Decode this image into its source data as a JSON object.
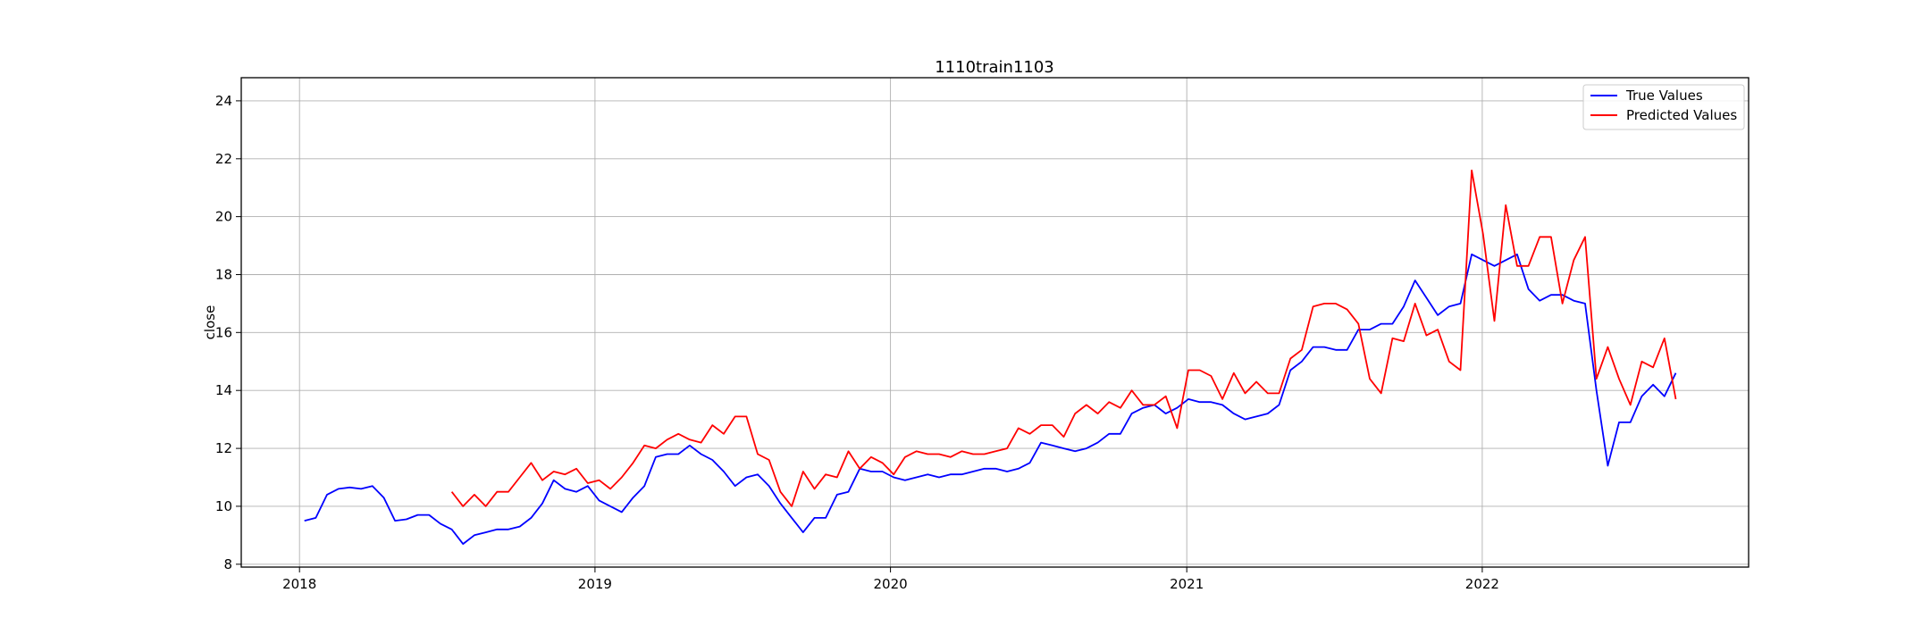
{
  "chart_data": {
    "type": "line",
    "title": "1110train1103",
    "xlabel": "",
    "ylabel": "close",
    "xlim": [
      "2017-10-21",
      "2022-11-26"
    ],
    "ylim": [
      7.9,
      24.8
    ],
    "x_ticks": [
      "2018-01-01",
      "2019-01-01",
      "2020-01-01",
      "2021-01-01",
      "2022-01-01"
    ],
    "x_tick_labels": [
      "2018",
      "2019",
      "2020",
      "2021",
      "2022"
    ],
    "y_ticks": [
      8,
      10,
      12,
      14,
      16,
      18,
      20,
      22,
      24
    ],
    "y_tick_labels": [
      "8",
      "10",
      "12",
      "14",
      "16",
      "18",
      "20",
      "22",
      "24"
    ],
    "grid": true,
    "legend_position": "top-right",
    "series": [
      {
        "name": "True Values",
        "color": "#0000ff",
        "points": [
          [
            "2018-01-07",
            9.5
          ],
          [
            "2018-01-21",
            9.6
          ],
          [
            "2018-02-04",
            10.4
          ],
          [
            "2018-02-18",
            10.6
          ],
          [
            "2018-03-04",
            10.65
          ],
          [
            "2018-03-18",
            10.6
          ],
          [
            "2018-04-01",
            10.7
          ],
          [
            "2018-04-15",
            10.3
          ],
          [
            "2018-04-29",
            9.5
          ],
          [
            "2018-05-13",
            9.55
          ],
          [
            "2018-05-27",
            9.7
          ],
          [
            "2018-06-10",
            9.7
          ],
          [
            "2018-06-24",
            9.4
          ],
          [
            "2018-07-08",
            9.2
          ],
          [
            "2018-07-22",
            8.7
          ],
          [
            "2018-08-05",
            9.0
          ],
          [
            "2018-08-19",
            9.1
          ],
          [
            "2018-09-02",
            9.2
          ],
          [
            "2018-09-16",
            9.2
          ],
          [
            "2018-09-30",
            9.3
          ],
          [
            "2018-10-14",
            9.6
          ],
          [
            "2018-10-28",
            10.1
          ],
          [
            "2018-11-11",
            10.9
          ],
          [
            "2018-11-25",
            10.6
          ],
          [
            "2018-12-09",
            10.5
          ],
          [
            "2018-12-23",
            10.7
          ],
          [
            "2019-01-06",
            10.2
          ],
          [
            "2019-01-20",
            10.0
          ],
          [
            "2019-02-03",
            9.8
          ],
          [
            "2019-02-17",
            10.3
          ],
          [
            "2019-03-03",
            10.7
          ],
          [
            "2019-03-17",
            11.7
          ],
          [
            "2019-03-31",
            11.8
          ],
          [
            "2019-04-14",
            11.8
          ],
          [
            "2019-04-28",
            12.1
          ],
          [
            "2019-05-12",
            11.8
          ],
          [
            "2019-05-26",
            11.6
          ],
          [
            "2019-06-09",
            11.2
          ],
          [
            "2019-06-23",
            10.7
          ],
          [
            "2019-07-07",
            11.0
          ],
          [
            "2019-07-21",
            11.1
          ],
          [
            "2019-08-04",
            10.7
          ],
          [
            "2019-08-18",
            10.1
          ],
          [
            "2019-09-01",
            9.6
          ],
          [
            "2019-09-15",
            9.1
          ],
          [
            "2019-09-29",
            9.6
          ],
          [
            "2019-10-13",
            9.6
          ],
          [
            "2019-10-27",
            10.4
          ],
          [
            "2019-11-10",
            10.5
          ],
          [
            "2019-11-24",
            11.3
          ],
          [
            "2019-12-08",
            11.2
          ],
          [
            "2019-12-22",
            11.2
          ],
          [
            "2020-01-05",
            11.0
          ],
          [
            "2020-01-19",
            10.9
          ],
          [
            "2020-02-02",
            11.0
          ],
          [
            "2020-02-16",
            11.1
          ],
          [
            "2020-03-01",
            11.0
          ],
          [
            "2020-03-15",
            11.1
          ],
          [
            "2020-03-29",
            11.1
          ],
          [
            "2020-04-12",
            11.2
          ],
          [
            "2020-04-26",
            11.3
          ],
          [
            "2020-05-10",
            11.3
          ],
          [
            "2020-05-24",
            11.2
          ],
          [
            "2020-06-07",
            11.3
          ],
          [
            "2020-06-21",
            11.5
          ],
          [
            "2020-07-05",
            12.2
          ],
          [
            "2020-07-19",
            12.1
          ],
          [
            "2020-08-02",
            12.0
          ],
          [
            "2020-08-16",
            11.9
          ],
          [
            "2020-08-30",
            12.0
          ],
          [
            "2020-09-13",
            12.2
          ],
          [
            "2020-09-27",
            12.5
          ],
          [
            "2020-10-11",
            12.5
          ],
          [
            "2020-10-25",
            13.2
          ],
          [
            "2020-11-08",
            13.4
          ],
          [
            "2020-11-22",
            13.5
          ],
          [
            "2020-12-06",
            13.2
          ],
          [
            "2020-12-20",
            13.4
          ],
          [
            "2021-01-03",
            13.7
          ],
          [
            "2021-01-17",
            13.6
          ],
          [
            "2021-01-31",
            13.6
          ],
          [
            "2021-02-14",
            13.5
          ],
          [
            "2021-02-28",
            13.2
          ],
          [
            "2021-03-14",
            13.0
          ],
          [
            "2021-03-28",
            13.1
          ],
          [
            "2021-04-11",
            13.2
          ],
          [
            "2021-04-25",
            13.5
          ],
          [
            "2021-05-09",
            14.7
          ],
          [
            "2021-05-23",
            15.0
          ],
          [
            "2021-06-06",
            15.5
          ],
          [
            "2021-06-20",
            15.5
          ],
          [
            "2021-07-04",
            15.4
          ],
          [
            "2021-07-18",
            15.4
          ],
          [
            "2021-08-01",
            16.1
          ],
          [
            "2021-08-15",
            16.1
          ],
          [
            "2021-08-29",
            16.3
          ],
          [
            "2021-09-12",
            16.3
          ],
          [
            "2021-09-26",
            16.9
          ],
          [
            "2021-10-10",
            17.8
          ],
          [
            "2021-10-24",
            17.2
          ],
          [
            "2021-11-07",
            16.6
          ],
          [
            "2021-11-21",
            16.9
          ],
          [
            "2021-12-05",
            17.0
          ],
          [
            "2021-12-19",
            18.7
          ],
          [
            "2022-01-02",
            18.5
          ],
          [
            "2022-01-16",
            18.3
          ],
          [
            "2022-01-30",
            18.5
          ],
          [
            "2022-02-13",
            18.7
          ],
          [
            "2022-02-27",
            17.5
          ],
          [
            "2022-03-13",
            17.1
          ],
          [
            "2022-03-27",
            17.3
          ],
          [
            "2022-04-10",
            17.3
          ],
          [
            "2022-04-24",
            17.1
          ],
          [
            "2022-05-08",
            17.0
          ],
          [
            "2022-05-22",
            14.0
          ],
          [
            "2022-06-05",
            11.4
          ],
          [
            "2022-06-19",
            12.9
          ],
          [
            "2022-07-03",
            12.9
          ],
          [
            "2022-07-17",
            13.8
          ],
          [
            "2022-07-31",
            14.2
          ],
          [
            "2022-08-14",
            13.8
          ],
          [
            "2022-08-28",
            14.6
          ]
        ]
      },
      {
        "name": "Predicted Values",
        "color": "#ff0000",
        "points": [
          [
            "2018-07-08",
            10.5
          ],
          [
            "2018-07-22",
            10.0
          ],
          [
            "2018-08-05",
            10.4
          ],
          [
            "2018-08-19",
            10.0
          ],
          [
            "2018-09-02",
            10.5
          ],
          [
            "2018-09-16",
            10.5
          ],
          [
            "2018-09-30",
            11.0
          ],
          [
            "2018-10-14",
            11.5
          ],
          [
            "2018-10-28",
            10.9
          ],
          [
            "2018-11-11",
            11.2
          ],
          [
            "2018-11-25",
            11.1
          ],
          [
            "2018-12-09",
            11.3
          ],
          [
            "2018-12-23",
            10.8
          ],
          [
            "2019-01-06",
            10.9
          ],
          [
            "2019-01-20",
            10.6
          ],
          [
            "2019-02-03",
            11.0
          ],
          [
            "2019-02-17",
            11.5
          ],
          [
            "2019-03-03",
            12.1
          ],
          [
            "2019-03-17",
            12.0
          ],
          [
            "2019-03-31",
            12.3
          ],
          [
            "2019-04-14",
            12.5
          ],
          [
            "2019-04-28",
            12.3
          ],
          [
            "2019-05-12",
            12.2
          ],
          [
            "2019-05-26",
            12.8
          ],
          [
            "2019-06-09",
            12.5
          ],
          [
            "2019-06-23",
            13.1
          ],
          [
            "2019-07-07",
            13.1
          ],
          [
            "2019-07-21",
            11.8
          ],
          [
            "2019-08-04",
            11.6
          ],
          [
            "2019-08-18",
            10.5
          ],
          [
            "2019-09-01",
            10.0
          ],
          [
            "2019-09-15",
            11.2
          ],
          [
            "2019-09-29",
            10.6
          ],
          [
            "2019-10-13",
            11.1
          ],
          [
            "2019-10-27",
            11.0
          ],
          [
            "2019-11-10",
            11.9
          ],
          [
            "2019-11-24",
            11.3
          ],
          [
            "2019-12-08",
            11.7
          ],
          [
            "2019-12-22",
            11.5
          ],
          [
            "2020-01-05",
            11.1
          ],
          [
            "2020-01-19",
            11.7
          ],
          [
            "2020-02-02",
            11.9
          ],
          [
            "2020-02-16",
            11.8
          ],
          [
            "2020-03-01",
            11.8
          ],
          [
            "2020-03-15",
            11.7
          ],
          [
            "2020-03-29",
            11.9
          ],
          [
            "2020-04-12",
            11.8
          ],
          [
            "2020-04-26",
            11.8
          ],
          [
            "2020-05-10",
            11.9
          ],
          [
            "2020-05-24",
            12.0
          ],
          [
            "2020-06-07",
            12.7
          ],
          [
            "2020-06-21",
            12.5
          ],
          [
            "2020-07-05",
            12.8
          ],
          [
            "2020-07-19",
            12.8
          ],
          [
            "2020-08-02",
            12.4
          ],
          [
            "2020-08-16",
            13.2
          ],
          [
            "2020-08-30",
            13.5
          ],
          [
            "2020-09-13",
            13.2
          ],
          [
            "2020-09-27",
            13.6
          ],
          [
            "2020-10-11",
            13.4
          ],
          [
            "2020-10-25",
            14.0
          ],
          [
            "2020-11-08",
            13.5
          ],
          [
            "2020-11-22",
            13.5
          ],
          [
            "2020-12-06",
            13.8
          ],
          [
            "2020-12-20",
            12.7
          ],
          [
            "2021-01-03",
            14.7
          ],
          [
            "2021-01-17",
            14.7
          ],
          [
            "2021-01-31",
            14.5
          ],
          [
            "2021-02-14",
            13.7
          ],
          [
            "2021-02-28",
            14.6
          ],
          [
            "2021-03-14",
            13.9
          ],
          [
            "2021-03-28",
            14.3
          ],
          [
            "2021-04-11",
            13.9
          ],
          [
            "2021-04-25",
            13.9
          ],
          [
            "2021-05-09",
            15.1
          ],
          [
            "2021-05-23",
            15.4
          ],
          [
            "2021-06-06",
            16.9
          ],
          [
            "2021-06-20",
            17.0
          ],
          [
            "2021-07-04",
            17.0
          ],
          [
            "2021-07-18",
            16.8
          ],
          [
            "2021-08-01",
            16.3
          ],
          [
            "2021-08-15",
            14.4
          ],
          [
            "2021-08-29",
            13.9
          ],
          [
            "2021-09-12",
            15.8
          ],
          [
            "2021-09-26",
            15.7
          ],
          [
            "2021-10-10",
            17.0
          ],
          [
            "2021-10-24",
            15.9
          ],
          [
            "2021-11-07",
            16.1
          ],
          [
            "2021-11-21",
            15.0
          ],
          [
            "2021-12-05",
            14.7
          ],
          [
            "2021-12-19",
            21.6
          ],
          [
            "2022-01-02",
            19.4
          ],
          [
            "2022-01-16",
            16.4
          ],
          [
            "2022-01-30",
            20.4
          ],
          [
            "2022-02-13",
            18.3
          ],
          [
            "2022-02-27",
            18.3
          ],
          [
            "2022-03-13",
            19.3
          ],
          [
            "2022-03-27",
            19.3
          ],
          [
            "2022-04-10",
            17.0
          ],
          [
            "2022-04-24",
            18.5
          ],
          [
            "2022-05-08",
            19.3
          ],
          [
            "2022-05-22",
            14.4
          ],
          [
            "2022-06-05",
            15.5
          ],
          [
            "2022-06-19",
            14.4
          ],
          [
            "2022-07-03",
            13.5
          ],
          [
            "2022-07-17",
            15.0
          ],
          [
            "2022-07-31",
            14.8
          ],
          [
            "2022-08-14",
            15.8
          ],
          [
            "2022-08-28",
            13.7
          ]
        ]
      }
    ]
  }
}
